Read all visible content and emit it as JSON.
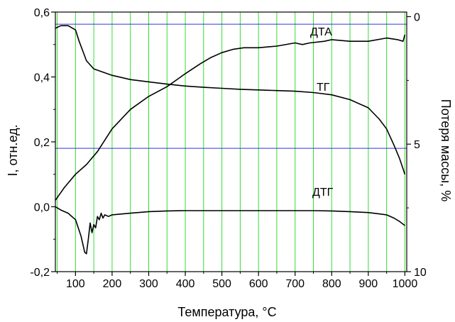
{
  "chart_data": {
    "type": "line",
    "xlabel": "Температура, °С",
    "ylabel_left": "I, отн.ед.",
    "ylabel_right": "Потеря массы, %",
    "xlim": [
      45,
      1005
    ],
    "ylim_left": [
      -0.2,
      0.6
    ],
    "ylim_right": [
      10,
      -0.18
    ],
    "x_ticks": [
      "100",
      "200",
      "300",
      "400",
      "500",
      "600",
      "700",
      "800",
      "900",
      "1000"
    ],
    "x_tick_values": [
      100,
      200,
      300,
      400,
      500,
      600,
      700,
      800,
      900,
      1000
    ],
    "y_left_ticks": [
      "-0,2",
      "0,0",
      "0,2",
      "0,4",
      "0,6"
    ],
    "y_left_tick_values": [
      -0.2,
      0.0,
      0.2,
      0.4,
      0.6
    ],
    "y_right_ticks": [
      "0",
      "5",
      "10"
    ],
    "y_right_tick_values": [
      0,
      5,
      10
    ],
    "green_gridlines_x": [
      50,
      100,
      150,
      200,
      250,
      300,
      350,
      400,
      450,
      500,
      550,
      600,
      650,
      700,
      750,
      800,
      850,
      900,
      950,
      1000
    ],
    "blue_gridlines_y_left": [
      0.18,
      0.5625
    ],
    "colors": {
      "green_grid": "#33dd33",
      "blue_grid": "#3333dd",
      "curves": "#000000",
      "axes": "#000000"
    },
    "series": [
      {
        "name": "ДТА",
        "axis": "left",
        "x": [
          45,
          70,
          100,
          130,
          160,
          200,
          250,
          300,
          350,
          400,
          440,
          470,
          500,
          530,
          560,
          600,
          650,
          700,
          720,
          740,
          780,
          800,
          850,
          900,
          950,
          980,
          995,
          1000
        ],
        "y": [
          0.02,
          0.06,
          0.1,
          0.13,
          0.17,
          0.24,
          0.3,
          0.34,
          0.37,
          0.41,
          0.44,
          0.46,
          0.475,
          0.485,
          0.49,
          0.49,
          0.495,
          0.505,
          0.5,
          0.505,
          0.51,
          0.515,
          0.51,
          0.51,
          0.52,
          0.515,
          0.51,
          0.53
        ]
      },
      {
        "name": "ТГ",
        "axis": "left",
        "x": [
          45,
          60,
          80,
          100,
          110,
          130,
          150,
          200,
          250,
          300,
          350,
          400,
          450,
          500,
          550,
          600,
          650,
          700,
          750,
          800,
          850,
          900,
          930,
          950,
          970,
          985,
          1000
        ],
        "y": [
          0.55,
          0.558,
          0.558,
          0.545,
          0.51,
          0.45,
          0.425,
          0.405,
          0.392,
          0.385,
          0.378,
          0.372,
          0.368,
          0.365,
          0.362,
          0.36,
          0.358,
          0.356,
          0.352,
          0.345,
          0.33,
          0.305,
          0.27,
          0.24,
          0.19,
          0.15,
          0.1
        ]
      },
      {
        "name": "ДТГ",
        "axis": "left",
        "x": [
          45,
          60,
          80,
          100,
          115,
          125,
          130,
          135,
          140,
          145,
          150,
          155,
          160,
          165,
          170,
          175,
          180,
          190,
          200,
          250,
          300,
          350,
          400,
          450,
          500,
          550,
          600,
          650,
          700,
          750,
          800,
          850,
          900,
          930,
          950,
          970,
          985,
          1000
        ],
        "y": [
          0.0,
          -0.01,
          -0.02,
          -0.04,
          -0.09,
          -0.14,
          -0.145,
          -0.1,
          -0.05,
          -0.08,
          -0.055,
          -0.065,
          -0.03,
          -0.04,
          -0.02,
          -0.035,
          -0.025,
          -0.03,
          -0.025,
          -0.02,
          -0.015,
          -0.013,
          -0.012,
          -0.012,
          -0.012,
          -0.012,
          -0.012,
          -0.012,
          -0.012,
          -0.012,
          -0.013,
          -0.015,
          -0.018,
          -0.022,
          -0.025,
          -0.035,
          -0.045,
          -0.058
        ]
      }
    ]
  }
}
